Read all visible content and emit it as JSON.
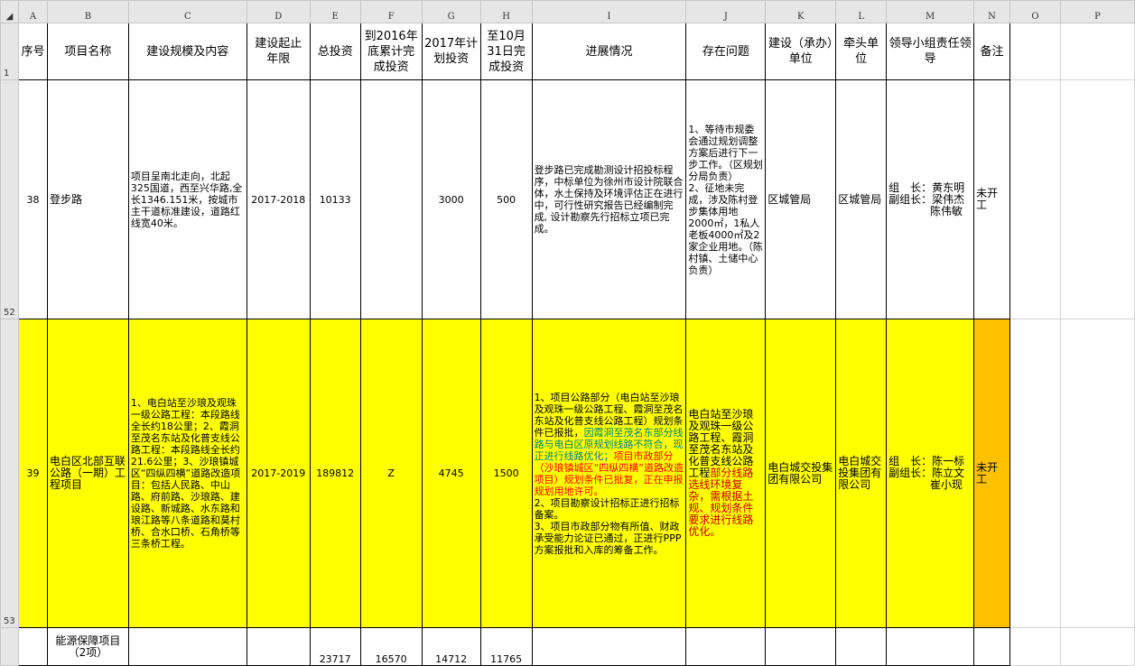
{
  "columns": [
    "A",
    "B",
    "C",
    "D",
    "E",
    "F",
    "G",
    "H",
    "I",
    "J",
    "K",
    "L",
    "M",
    "N",
    "O",
    "P"
  ],
  "row_numbers": [
    "1",
    "52",
    "53"
  ],
  "header": {
    "seq": "序号",
    "name": "项目名称",
    "scale": "建设规模及内容",
    "period": "建设起止年限",
    "total": "总投资",
    "done2016": "到2016年底累计完成投资",
    "plan2017": "2017年计划投资",
    "done_oct": "至10月31日完成投资",
    "progress": "进展情况",
    "problems": "存在问题",
    "builder": "建设（承办）单位",
    "lead_unit": "牵头单位",
    "leaders": "领导小组责任领导",
    "remark": "备注"
  },
  "rows": [
    {
      "seq": "38",
      "name": "登步路",
      "scale": "项目呈南北走向，北起325国道，西至兴华路,全长1346.151米，按城市主干道标准建设，道路红线宽40米。",
      "period": "2017-2018",
      "total": "10133",
      "done2016": "",
      "plan2017": "3000",
      "done_oct": "500",
      "progress": "登步路已完成勘测设计招投标程序，中标单位为徐州市设计院联合体，水土保持及环境评估正在进行中，可行性研究报告已经编制完成, 设计勘察先行招标立项已完成。",
      "problems": "1、等待市规委会通过规划调整方案后进行下一步工作。（区规划分局负责）\n2、征地未完成，涉及陈村登步集体用地2000㎡，1私人老板4000㎡及2家企业用地。（陈村镇、土储中心负责）",
      "builder": "区城管局",
      "lead_unit": "区城管局",
      "leader_head": "组　长：黄东明",
      "leader_deputy": "副组长：梁伟杰",
      "leader_extra": "陈伟敏",
      "remark": "未开工"
    },
    {
      "seq": "39",
      "name": "电白区北部互联公路（一期）工程项目",
      "scale": "1、电白站至沙琅及观珠一级公路工程：本段路线全长约18公里；2、霞洞至茂名东站及化普支线公路工程：本段路线全长约21.6公里；3、沙琅镇城区“四纵四横”道路改造项目：包括人民路、中山路、府前路、沙琅路、建设路、新城路、水东路和琅江路等八条道路和莫村桥、合水口桥、石角桥等三条桥工程。",
      "period": "2017-2019",
      "total": "189812",
      "done2016": "Z",
      "plan2017": "4745",
      "done_oct": "1500",
      "progress_p1": "1、项目公路部分（电白站至沙琅及观珠一级公路工程、霞洞至茂名东站及化普支线公路工程）规划条件已报批，",
      "progress_p2": "因霞洞至茂名东部分线路与电白区原规划线路不符合，现正进行线路优化；",
      "progress_p3": "项目市政部分（沙琅镇城区“四纵四横”道路改造项目）规划条件已批复，正在申报规划用地许可。",
      "progress_p4": "2、项目勘察设计招标正进行招标备案。",
      "progress_p5": "3、项目市政部分物有所值、财政承受能力论证已通过，正进行PPP方案报批和入库的筹备工作。",
      "problems_p1": "电白站至沙琅及观珠一级公路工程、霞洞至茂名东站及化普支线公路工程",
      "problems_p2": "部分线路选线环境复杂，需根据土规、规划条件要求进行线路优化。",
      "builder": "电白城交投集团有限公司",
      "lead_unit": "电白城交投集团有限公司",
      "leader_head": "组　长：陈一标",
      "leader_deputy": "副组长：陈立文",
      "leader_extra": "崔小现",
      "remark": "未开工"
    },
    {
      "name": "能源保障项目（2项）",
      "total": "23717",
      "done2016": "16570",
      "plan2017": "14712",
      "done_oct": "11765"
    }
  ],
  "colors": {
    "highlight": "#ffff00",
    "remark_highlight": "#ffc000",
    "teal_text": "#008080",
    "red_text": "#ff0000",
    "dark_red_text": "#c00000"
  }
}
